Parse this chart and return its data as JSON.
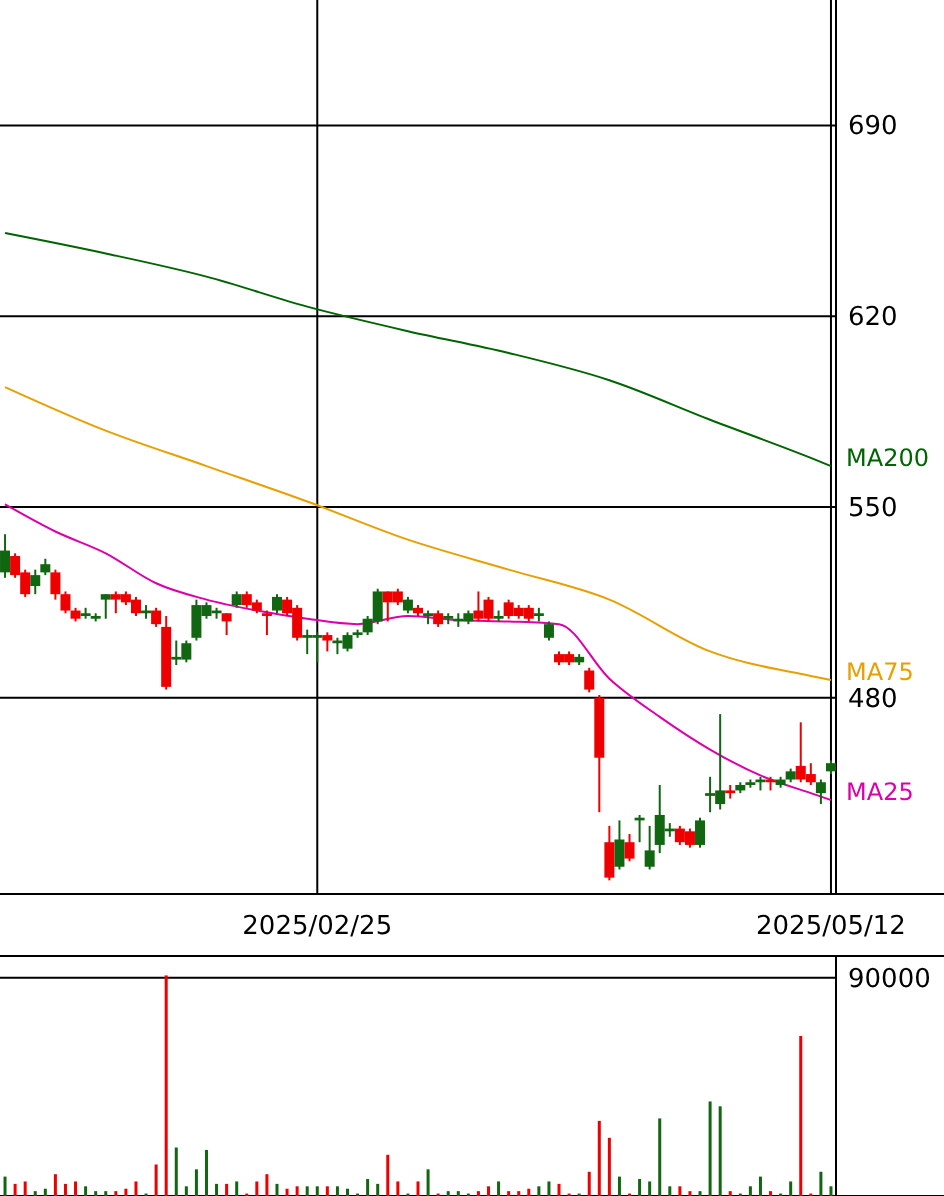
{
  "chart_data": [
    {
      "type": "candlestick",
      "categories": [
        null,
        null,
        null,
        null,
        null,
        null,
        null,
        null,
        null,
        null,
        null,
        null,
        null,
        null,
        null,
        null,
        null,
        null,
        null,
        null,
        null,
        null,
        null,
        null,
        null,
        null,
        null,
        null,
        null,
        null,
        null,
        "2025/02/25",
        null,
        null,
        null,
        null,
        null,
        null,
        null,
        null,
        null,
        null,
        null,
        null,
        null,
        null,
        null,
        null,
        null,
        null,
        null,
        null,
        null,
        null,
        null,
        null,
        null,
        null,
        null,
        null,
        null,
        null,
        null,
        null,
        null,
        null,
        null,
        null,
        null,
        null,
        null,
        null,
        null,
        null,
        null,
        null,
        null,
        null,
        null,
        null,
        null,
        null,
        "2025/05/12"
      ],
      "ohlc": [
        [
          526,
          540,
          524,
          534
        ],
        [
          532,
          533,
          524,
          525
        ],
        [
          526,
          527,
          517,
          518
        ],
        [
          521,
          527,
          518,
          525
        ],
        [
          526,
          531,
          525,
          529
        ],
        [
          526,
          527,
          516,
          518
        ],
        [
          518,
          519,
          511,
          512
        ],
        [
          512,
          513,
          508,
          509
        ],
        [
          510,
          513,
          509,
          511
        ],
        [
          509,
          511,
          508,
          510
        ],
        [
          516,
          518,
          509,
          518
        ],
        [
          518,
          519,
          511,
          516
        ],
        [
          518,
          519,
          514,
          515
        ],
        [
          516,
          517,
          510,
          511
        ],
        [
          511,
          514,
          509,
          512
        ],
        [
          512,
          513,
          506,
          507
        ],
        [
          506,
          510,
          483,
          484
        ],
        [
          494,
          501,
          492,
          495
        ],
        [
          494,
          501,
          493,
          500
        ],
        [
          502,
          516,
          501,
          514
        ],
        [
          510,
          515,
          509,
          514
        ],
        [
          511,
          513,
          509,
          512
        ],
        [
          511,
          511,
          503,
          508
        ],
        [
          514,
          519,
          513,
          518
        ],
        [
          518,
          519,
          513,
          514
        ],
        [
          515,
          516,
          511,
          512
        ],
        [
          511,
          512,
          503,
          510
        ],
        [
          512,
          518,
          511,
          517
        ],
        [
          516,
          517,
          510,
          511
        ],
        [
          513,
          514,
          501,
          502
        ],
        [
          502,
          505,
          496,
          503
        ],
        [
          502,
          504,
          493,
          503
        ],
        [
          503,
          504,
          497,
          501
        ],
        [
          500,
          502,
          496,
          501
        ],
        [
          498,
          504,
          497,
          503
        ],
        [
          503,
          505,
          502,
          504
        ],
        [
          504,
          510,
          503,
          509
        ],
        [
          508,
          520,
          507,
          519
        ],
        [
          519,
          519,
          508,
          515
        ],
        [
          519,
          520,
          514,
          515
        ],
        [
          512,
          517,
          511,
          516
        ],
        [
          513,
          514,
          510,
          511
        ],
        [
          510,
          512,
          507,
          511
        ],
        [
          511,
          512,
          506,
          507
        ],
        [
          509,
          511,
          507,
          510
        ],
        [
          508,
          511,
          506,
          509
        ],
        [
          508,
          512,
          507,
          511
        ],
        [
          512,
          519,
          508,
          509
        ],
        [
          516,
          517,
          508,
          509
        ],
        [
          509,
          512,
          508,
          510
        ],
        [
          515,
          516,
          509,
          510
        ],
        [
          513,
          514,
          509,
          510
        ],
        [
          513,
          514,
          508,
          509
        ],
        [
          510,
          513,
          508,
          511
        ],
        [
          502,
          508,
          501,
          507
        ],
        [
          496,
          497,
          492,
          493
        ],
        [
          496,
          497,
          492,
          493
        ],
        [
          493,
          496,
          492,
          495
        ],
        [
          490,
          491,
          482,
          483
        ],
        [
          480,
          481,
          438,
          458
        ],
        [
          427,
          433,
          413,
          414
        ],
        [
          418,
          435,
          417,
          428
        ],
        [
          427,
          430,
          420,
          421
        ],
        [
          435,
          437,
          427,
          436
        ],
        [
          418,
          433,
          417,
          424
        ],
        [
          426,
          448,
          423,
          437
        ],
        [
          431,
          434,
          429,
          432
        ],
        [
          432,
          433,
          426,
          427
        ],
        [
          431,
          432,
          425,
          426
        ],
        [
          426,
          436,
          425,
          435
        ],
        [
          444,
          451,
          438,
          445
        ],
        [
          441,
          474,
          439,
          446
        ],
        [
          446,
          448,
          443,
          445
        ],
        [
          446,
          449,
          445,
          448
        ],
        [
          448,
          450,
          447,
          449
        ],
        [
          449,
          451,
          446,
          450
        ],
        [
          450,
          451,
          446,
          449
        ],
        [
          448,
          451,
          447,
          450
        ],
        [
          450,
          454,
          449,
          453
        ],
        [
          455,
          471,
          449,
          450
        ],
        [
          452,
          456,
          448,
          449
        ],
        [
          445,
          450,
          441,
          449
        ],
        [
          453,
          457,
          452,
          456
        ]
      ],
      "colors": [
        "#116611",
        "#ee0000",
        "#ee0000",
        "#116611",
        "#116611",
        "#ee0000",
        "#ee0000",
        "#ee0000",
        "#116611",
        "#116611",
        "#116611",
        "#ee0000",
        "#ee0000",
        "#ee0000",
        "#116611",
        "#ee0000",
        "#ee0000",
        "#116611",
        "#116611",
        "#116611",
        "#116611",
        "#116611",
        "#ee0000",
        "#116611",
        "#ee0000",
        "#ee0000",
        "#ee0000",
        "#116611",
        "#ee0000",
        "#ee0000",
        "#116611",
        "#116611",
        "#ee0000",
        "#116611",
        "#116611",
        "#116611",
        "#116611",
        "#116611",
        "#ee0000",
        "#ee0000",
        "#116611",
        "#ee0000",
        "#116611",
        "#ee0000",
        "#116611",
        "#116611",
        "#116611",
        "#ee0000",
        "#ee0000",
        "#116611",
        "#ee0000",
        "#ee0000",
        "#ee0000",
        "#116611",
        "#116611",
        "#ee0000",
        "#ee0000",
        "#116611",
        "#ee0000",
        "#ee0000",
        "#ee0000",
        "#116611",
        "#ee0000",
        "#116611",
        "#116611",
        "#116611",
        "#116611",
        "#ee0000",
        "#ee0000",
        "#116611",
        "#116611",
        "#116611",
        "#ee0000",
        "#116611",
        "#116611",
        "#116611",
        "#ee0000",
        "#116611",
        "#116611",
        "#ee0000",
        "#ee0000",
        "#116611",
        "#116611"
      ],
      "ylim": [
        408,
        736
      ],
      "yticks": [
        480,
        550,
        620,
        690
      ],
      "grid": true,
      "series": [
        {
          "type": "line",
          "name": "MA200",
          "color": "#006400",
          "values": [
            650.5,
            null,
            null,
            null,
            null,
            null,
            null,
            null,
            null,
            null,
            643,
            null,
            null,
            null,
            null,
            null,
            null,
            null,
            null,
            null,
            634.5,
            null,
            null,
            null,
            null,
            null,
            null,
            null,
            null,
            null,
            623.5,
            null,
            null,
            null,
            null,
            null,
            null,
            null,
            null,
            null,
            614.5,
            null,
            null,
            null,
            null,
            null,
            null,
            null,
            null,
            null,
            606.5,
            null,
            null,
            null,
            null,
            null,
            null,
            null,
            null,
            null,
            596.5,
            null,
            null,
            null,
            null,
            null,
            null,
            null,
            null,
            null,
            582,
            null,
            null,
            null,
            null,
            null,
            null,
            null,
            null,
            null,
            568,
            null,
            565
          ]
        },
        {
          "type": "line",
          "name": "MA75",
          "color": "#e8a000",
          "values": [
            594,
            null,
            null,
            null,
            null,
            null,
            null,
            null,
            null,
            null,
            578,
            null,
            null,
            null,
            null,
            null,
            null,
            null,
            null,
            null,
            565,
            null,
            null,
            null,
            null,
            null,
            null,
            null,
            null,
            null,
            552,
            null,
            null,
            null,
            null,
            null,
            null,
            null,
            null,
            null,
            538,
            null,
            null,
            null,
            null,
            null,
            null,
            null,
            null,
            null,
            527,
            null,
            null,
            null,
            null,
            null,
            null,
            null,
            null,
            null,
            516,
            null,
            null,
            null,
            null,
            null,
            null,
            null,
            null,
            null,
            497,
            null,
            null,
            null,
            null,
            null,
            null,
            null,
            null,
            null,
            488,
            null,
            486.5
          ]
        },
        {
          "type": "line",
          "name": "MA25",
          "color": "#dd00aa",
          "values": [
            551,
            null,
            null,
            null,
            null,
            541,
            null,
            null,
            null,
            null,
            533,
            null,
            null,
            null,
            null,
            522,
            null,
            null,
            null,
            null,
            516,
            null,
            null,
            null,
            null,
            512,
            null,
            null,
            null,
            null,
            509,
            null,
            null,
            null,
            null,
            507,
            null,
            null,
            null,
            null,
            510,
            null,
            null,
            null,
            null,
            508.5,
            null,
            null,
            null,
            null,
            508,
            null,
            null,
            null,
            null,
            507,
            null,
            null,
            null,
            null,
            487,
            null,
            null,
            null,
            null,
            473,
            null,
            null,
            null,
            null,
            461,
            null,
            null,
            null,
            null,
            451.5,
            null,
            null,
            null,
            null,
            445,
            null,
            442.5
          ]
        }
      ]
    },
    {
      "type": "bar",
      "categories": [
        null,
        null,
        null,
        null,
        null,
        null,
        null,
        null,
        null,
        null,
        null,
        null,
        null,
        null,
        null,
        null,
        null,
        null,
        null,
        null,
        null,
        null,
        null,
        null,
        null,
        null,
        null,
        null,
        null,
        null,
        null,
        null,
        null,
        null,
        null,
        null,
        null,
        null,
        null,
        null,
        null,
        null,
        null,
        null,
        null,
        null,
        null,
        null,
        null,
        null,
        null,
        null,
        null,
        null,
        null,
        null,
        null,
        null,
        null,
        null,
        null,
        null,
        null,
        null,
        null,
        null,
        null,
        null,
        null,
        null,
        null,
        null,
        null,
        null,
        null,
        null,
        null,
        null,
        null,
        null,
        null,
        null,
        null
      ],
      "values": [
        8000,
        5000,
        6000,
        2000,
        3000,
        9000,
        5000,
        6000,
        4000,
        2000,
        2000,
        2000,
        3000,
        6000,
        1000,
        13000,
        91000,
        20000,
        4000,
        11000,
        19000,
        5000,
        5000,
        6000,
        1000,
        6000,
        9000,
        5000,
        3000,
        4000,
        4000,
        4000,
        4000,
        4000,
        3000,
        1000,
        7000,
        5000,
        17000,
        6000,
        1000,
        6000,
        11000,
        1000,
        2000,
        2000,
        1000,
        2000,
        4000,
        6000,
        2000,
        2000,
        3000,
        4000,
        6000,
        5000,
        1000,
        1000,
        10000,
        31000,
        24000,
        8000,
        1000,
        7000,
        6000,
        32000,
        4000,
        4000,
        2000,
        2000,
        39000,
        37000,
        2000,
        1000,
        4000,
        8000,
        2000,
        1000,
        6000,
        66000,
        1000,
        10000,
        4000
      ],
      "colors": [
        "#116611",
        "#ee0000",
        "#ee0000",
        "#116611",
        "#116611",
        "#ee0000",
        "#ee0000",
        "#ee0000",
        "#116611",
        "#116611",
        "#116611",
        "#ee0000",
        "#ee0000",
        "#ee0000",
        "#116611",
        "#ee0000",
        "#ee0000",
        "#116611",
        "#116611",
        "#116611",
        "#116611",
        "#116611",
        "#ee0000",
        "#116611",
        "#ee0000",
        "#ee0000",
        "#ee0000",
        "#116611",
        "#ee0000",
        "#ee0000",
        "#116611",
        "#116611",
        "#ee0000",
        "#116611",
        "#116611",
        "#116611",
        "#116611",
        "#116611",
        "#ee0000",
        "#ee0000",
        "#116611",
        "#ee0000",
        "#116611",
        "#ee0000",
        "#116611",
        "#116611",
        "#116611",
        "#ee0000",
        "#ee0000",
        "#116611",
        "#ee0000",
        "#ee0000",
        "#ee0000",
        "#116611",
        "#116611",
        "#ee0000",
        "#ee0000",
        "#116611",
        "#ee0000",
        "#ee0000",
        "#ee0000",
        "#116611",
        "#ee0000",
        "#116611",
        "#116611",
        "#116611",
        "#116611",
        "#ee0000",
        "#ee0000",
        "#116611",
        "#116611",
        "#116611",
        "#ee0000",
        "#116611",
        "#116611",
        "#116611",
        "#ee0000",
        "#116611",
        "#116611",
        "#ee0000",
        "#ee0000",
        "#116611",
        "#116611"
      ],
      "ylim": [
        0,
        99000
      ],
      "yticks": [
        90000
      ],
      "grid": "y",
      "tick_labels": "y"
    }
  ]
}
